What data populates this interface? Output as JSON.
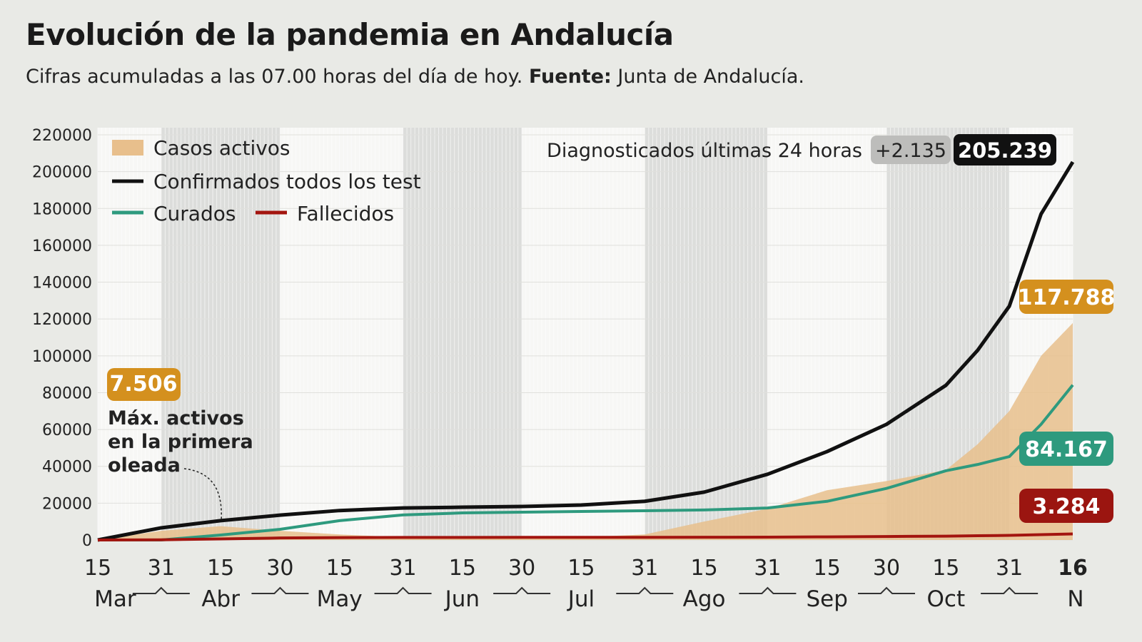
{
  "title": "Evolución de la pandemia en Andalucía",
  "subtitle": {
    "text": "Cifras acumuladas a las 07.00 horas del día de hoy.",
    "source_label": "Fuente:",
    "source": "Junta de Andalucía."
  },
  "diagnosed": {
    "label": "Diagnosticados últimas 24 horas",
    "delta": "+2.135",
    "total": "205.239"
  },
  "annotation": {
    "value": "7.506",
    "lines": [
      "Máx. activos",
      "en la primera",
      "oleada"
    ]
  },
  "chart_data": {
    "type": "line",
    "ylim": [
      0,
      220000
    ],
    "yticks": [
      0,
      20000,
      40000,
      60000,
      80000,
      100000,
      120000,
      140000,
      160000,
      180000,
      200000,
      220000
    ],
    "xlim": [
      "Mar 15",
      "Nov 16"
    ],
    "xticks": [
      {
        "date": "Mar 15",
        "label": "15"
      },
      {
        "date": "Mar 31",
        "label": "31"
      },
      {
        "date": "Apr 15",
        "label": "15"
      },
      {
        "date": "Apr 30",
        "label": "30"
      },
      {
        "date": "May 15",
        "label": "15"
      },
      {
        "date": "May 31",
        "label": "31"
      },
      {
        "date": "Jun 15",
        "label": "15"
      },
      {
        "date": "Jun 30",
        "label": "30"
      },
      {
        "date": "Jul 15",
        "label": "15"
      },
      {
        "date": "Jul 31",
        "label": "31"
      },
      {
        "date": "Aug 15",
        "label": "15"
      },
      {
        "date": "Aug 31",
        "label": "31"
      },
      {
        "date": "Sep 15",
        "label": "15"
      },
      {
        "date": "Sep 30",
        "label": "30"
      },
      {
        "date": "Oct 15",
        "label": "15"
      },
      {
        "date": "Oct 31",
        "label": "31"
      },
      {
        "date": "Nov 16",
        "label": "16",
        "bold": true
      }
    ],
    "months": [
      {
        "label": "Mar",
        "center": "Mar 23"
      },
      {
        "label": "Abr",
        "center": "Apr 15"
      },
      {
        "label": "May",
        "center": "May 15"
      },
      {
        "label": "Jun",
        "center": "Jun 15"
      },
      {
        "label": "Jul",
        "center": "Jul 15"
      },
      {
        "label": "Ago",
        "center": "Aug 15"
      },
      {
        "label": "Sep",
        "center": "Sep 15"
      },
      {
        "label": "Oct",
        "center": "Oct 15"
      },
      {
        "label": "N",
        "center": "Nov 16"
      }
    ],
    "shaded_months": [
      [
        "Mar 31",
        "Apr 30"
      ],
      [
        "May 31",
        "Jun 30"
      ],
      [
        "Jul 31",
        "Aug 31"
      ],
      [
        "Sep 30",
        "Oct 31"
      ]
    ],
    "grid": true,
    "legend_position": "top-left",
    "x": [
      "Mar 15",
      "Mar 31",
      "Apr 15",
      "Apr 30",
      "May 15",
      "May 31",
      "Jun 15",
      "Jun 30",
      "Jul 15",
      "Jul 31",
      "Aug 15",
      "Aug 31",
      "Sep 15",
      "Sep 30",
      "Oct 15",
      "Oct 23",
      "Oct 31",
      "Nov 8",
      "Nov 16"
    ],
    "series": [
      {
        "name": "Casos activos",
        "type": "area",
        "color": "#e8bf8c",
        "values": [
          0,
          5000,
          7506,
          5000,
          3000,
          1500,
          1000,
          1000,
          1500,
          3000,
          10000,
          17000,
          27000,
          32000,
          38000,
          52000,
          70000,
          100000,
          117788
        ],
        "end_label": "117.788",
        "label_color": "#d4901e"
      },
      {
        "name": "Confirmados todos los test",
        "type": "line",
        "color": "#111111",
        "values": [
          0,
          6600,
          10500,
          13500,
          16000,
          17400,
          17800,
          18200,
          19000,
          21000,
          26000,
          35700,
          48000,
          62800,
          84000,
          103000,
          127000,
          177000,
          205239
        ]
      },
      {
        "name": "Curados",
        "type": "line",
        "color": "#2e9a7e",
        "values": [
          0,
          0,
          2700,
          5800,
          10500,
          13600,
          14700,
          15100,
          15500,
          15900,
          16300,
          17400,
          21000,
          28000,
          37600,
          41000,
          45300,
          62800,
          84167
        ],
        "end_label": "84.167",
        "label_color": "#2e9a7e"
      },
      {
        "name": "Fallecidos",
        "type": "line",
        "color": "#a3150f",
        "values": [
          0,
          100,
          600,
          1100,
          1300,
          1400,
          1420,
          1430,
          1440,
          1450,
          1500,
          1550,
          1700,
          1900,
          2100,
          2300,
          2500,
          2900,
          3284
        ],
        "end_label": "3.284",
        "label_color": "#9b1510"
      }
    ]
  }
}
